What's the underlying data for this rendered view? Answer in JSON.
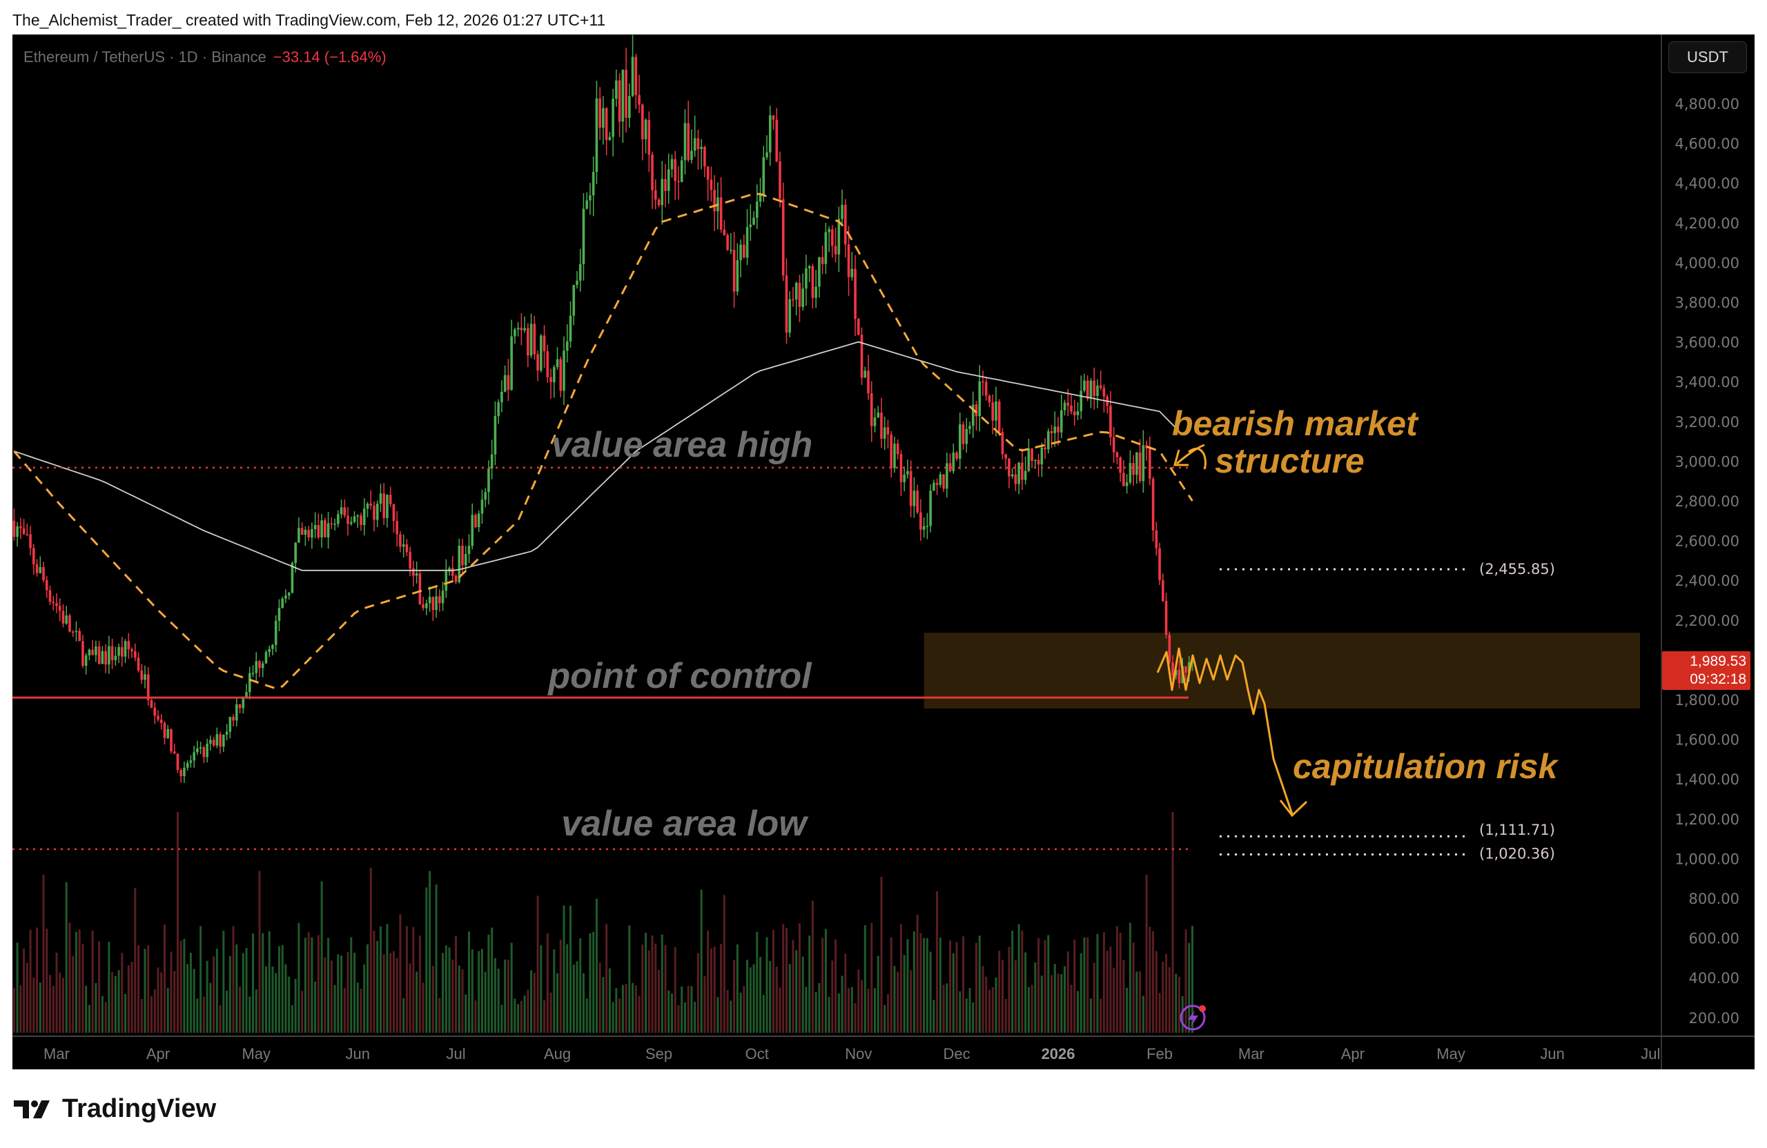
{
  "credit": "The_Alchemist_Trader_ created with TradingView.com, Feb 12, 2026 01:27 UTC+11",
  "legend": {
    "symbol": "Ethereum / TetherUS · 1D · Binance",
    "change": "−33.14 (−1.64%)"
  },
  "currency_button": "USDT",
  "current_price": {
    "price": "1,989.53",
    "countdown": "09:32:18",
    "value": 1989.53
  },
  "brand": "TradingView",
  "colors": {
    "up": "#4caf50",
    "down": "#f23645",
    "annotation": "#d4912c",
    "zone": "#2e1f09",
    "ma_fast": "#f5a83a",
    "ma_slow": "#d0d0d0"
  },
  "chart_data": {
    "type": "candlestick",
    "title": "",
    "ylim": [
      100,
      5000
    ],
    "y_ticks": [
      "4,800.00",
      "4,600.00",
      "4,400.00",
      "4,200.00",
      "4,000.00",
      "3,800.00",
      "3,600.00",
      "3,400.00",
      "3,200.00",
      "3,000.00",
      "2,800.00",
      "2,600.00",
      "2,400.00",
      "2,200.00",
      "1,800.00",
      "1,600.00",
      "1,400.00",
      "1,200.00",
      "1,000.00",
      "800.00",
      "600.00",
      "400.00",
      "200.00"
    ],
    "y_tick_values": [
      4800,
      4600,
      4400,
      4200,
      4000,
      3800,
      3600,
      3400,
      3200,
      3000,
      2800,
      2600,
      2400,
      2200,
      1800,
      1600,
      1400,
      1200,
      1000,
      800,
      600,
      400,
      200
    ],
    "x_ticks": [
      {
        "label": "Mar",
        "date": "2025-03-01"
      },
      {
        "label": "Apr",
        "date": "2025-04-01"
      },
      {
        "label": "May",
        "date": "2025-05-01"
      },
      {
        "label": "Jun",
        "date": "2025-06-01"
      },
      {
        "label": "Jul",
        "date": "2025-07-01"
      },
      {
        "label": "Aug",
        "date": "2025-08-01"
      },
      {
        "label": "Sep",
        "date": "2025-09-01"
      },
      {
        "label": "Oct",
        "date": "2025-10-01"
      },
      {
        "label": "Nov",
        "date": "2025-11-01"
      },
      {
        "label": "Dec",
        "date": "2025-12-01"
      },
      {
        "label": "2026",
        "date": "2026-01-01",
        "bold": true
      },
      {
        "label": "Feb",
        "date": "2026-02-01"
      },
      {
        "label": "Mar",
        "date": "2026-03-01"
      },
      {
        "label": "Apr",
        "date": "2026-04-01"
      },
      {
        "label": "May",
        "date": "2026-05-01"
      },
      {
        "label": "Jun",
        "date": "2026-06-01"
      },
      {
        "label": "Jul",
        "date": "2026-07-01"
      }
    ],
    "price_path_approx": [
      [
        "2025-02-16",
        2700
      ],
      [
        "2025-02-25",
        2400
      ],
      [
        "2025-03-10",
        2000
      ],
      [
        "2025-03-24",
        2050
      ],
      [
        "2025-04-08",
        1450
      ],
      [
        "2025-04-20",
        1600
      ],
      [
        "2025-05-08",
        2200
      ],
      [
        "2025-05-14",
        2600
      ],
      [
        "2025-06-10",
        2800
      ],
      [
        "2025-06-22",
        2250
      ],
      [
        "2025-07-01",
        2450
      ],
      [
        "2025-07-10",
        2900
      ],
      [
        "2025-07-20",
        3700
      ],
      [
        "2025-08-02",
        3400
      ],
      [
        "2025-08-13",
        4700
      ],
      [
        "2025-08-24",
        4900
      ],
      [
        "2025-09-01",
        4350
      ],
      [
        "2025-09-12",
        4650
      ],
      [
        "2025-09-25",
        3900
      ],
      [
        "2025-10-06",
        4700
      ],
      [
        "2025-10-10",
        3700
      ],
      [
        "2025-10-27",
        4200
      ],
      [
        "2025-11-04",
        3300
      ],
      [
        "2025-11-21",
        2700
      ],
      [
        "2025-12-10",
        3400
      ],
      [
        "2025-12-18",
        2900
      ],
      [
        "2026-01-06",
        3300
      ],
      [
        "2026-01-14",
        3350
      ],
      [
        "2026-01-20",
        2950
      ],
      [
        "2026-01-28",
        3000
      ],
      [
        "2026-02-05",
        1900
      ],
      [
        "2026-02-11",
        1990
      ]
    ],
    "ma_fast_approx": [
      [
        "2025-02-16",
        3050
      ],
      [
        "2025-03-01",
        2800
      ],
      [
        "2025-04-01",
        2250
      ],
      [
        "2025-04-20",
        1950
      ],
      [
        "2025-05-08",
        1850
      ],
      [
        "2025-06-01",
        2250
      ],
      [
        "2025-07-01",
        2400
      ],
      [
        "2025-07-20",
        2700
      ],
      [
        "2025-08-10",
        3500
      ],
      [
        "2025-09-01",
        4200
      ],
      [
        "2025-10-01",
        4350
      ],
      [
        "2025-10-27",
        4200
      ],
      [
        "2025-11-20",
        3500
      ],
      [
        "2025-12-20",
        3050
      ],
      [
        "2026-01-15",
        3150
      ],
      [
        "2026-02-01",
        3050
      ],
      [
        "2026-02-11",
        2800
      ]
    ],
    "ma_slow_approx": [
      [
        "2025-02-16",
        3050
      ],
      [
        "2025-03-15",
        2900
      ],
      [
        "2025-04-15",
        2650
      ],
      [
        "2025-05-15",
        2450
      ],
      [
        "2025-07-01",
        2450
      ],
      [
        "2025-07-25",
        2550
      ],
      [
        "2025-08-25",
        3050
      ],
      [
        "2025-10-01",
        3450
      ],
      [
        "2025-11-01",
        3600
      ],
      [
        "2025-12-01",
        3450
      ],
      [
        "2026-01-01",
        3350
      ],
      [
        "2026-02-01",
        3250
      ],
      [
        "2026-02-07",
        3150
      ]
    ],
    "levels": [
      {
        "name": "value-area-high",
        "price": 2967,
        "label": "value area high",
        "style": "dotted-red"
      },
      {
        "name": "point-of-control",
        "price": 1810,
        "label": "point of control",
        "style": "solid-red"
      },
      {
        "name": "value-area-low",
        "price": 1047,
        "label": "value area low",
        "style": "dotted-red"
      }
    ],
    "targets": [
      {
        "price": 2455.85,
        "label": "(2,455.85)"
      },
      {
        "price": 1111.71,
        "label": "(1,111.71)"
      },
      {
        "price": 1020.36,
        "label": "(1,020.36)"
      }
    ],
    "zone": {
      "from": "2025-11-21",
      "to": "2026-07-01",
      "top": 2136,
      "bottom": 1755
    },
    "annotations": {
      "bearish_line1": "bearish market",
      "bearish_line2": "structure",
      "capitulation": "capitulation risk"
    }
  }
}
